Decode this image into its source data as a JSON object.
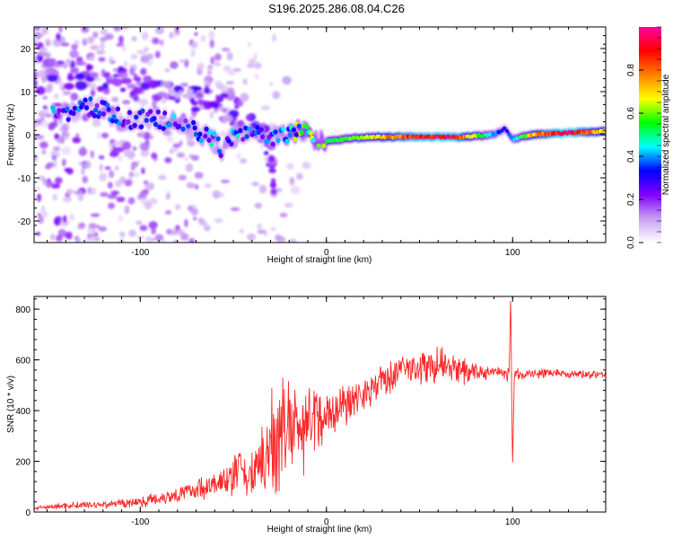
{
  "title": "S196.2025.286.08.04.C26",
  "chart_data": [
    {
      "type": "heatmap",
      "name": "spectrogram",
      "xlabel": "Height of straight line (km)",
      "ylabel": "Frequency (Hz)",
      "xlim": [
        -157,
        150
      ],
      "ylim": [
        -25,
        25
      ],
      "xticks": [
        -100,
        0,
        100
      ],
      "xtick_labels": [
        "-100",
        "0",
        "100"
      ],
      "yticks": [
        -20,
        -10,
        0,
        10,
        20
      ],
      "ytick_labels": [
        "-20",
        "-10",
        "0",
        "10",
        "20"
      ],
      "ridge": [
        {
          "x": -135,
          "y": 5.5,
          "a": 0.3
        },
        {
          "x": -128,
          "y": 6.5,
          "a": 0.28
        },
        {
          "x": -112,
          "y": 4.5,
          "a": 0.3
        },
        {
          "x": -105,
          "y": 3.5,
          "a": 0.26
        },
        {
          "x": -97,
          "y": 3.8,
          "a": 0.28
        },
        {
          "x": -85,
          "y": 3.0,
          "a": 0.32
        },
        {
          "x": -75,
          "y": 2.0,
          "a": 0.3
        },
        {
          "x": -62,
          "y": -1.0,
          "a": 0.36
        },
        {
          "x": -55,
          "y": -4.0,
          "a": 0.3
        },
        {
          "x": -48,
          "y": 1.5,
          "a": 0.35
        },
        {
          "x": -42,
          "y": -0.5,
          "a": 0.3
        },
        {
          "x": -36,
          "y": 0.5,
          "a": 0.28
        },
        {
          "x": -28,
          "y": -1.0,
          "a": 0.3
        },
        {
          "x": -20,
          "y": 0.0,
          "a": 0.45
        },
        {
          "x": -12,
          "y": 1.0,
          "a": 0.55
        },
        {
          "x": -5,
          "y": -1.5,
          "a": 0.5
        },
        {
          "x": 0,
          "y": -1.5,
          "a": 0.52
        },
        {
          "x": 10,
          "y": -1.0,
          "a": 0.55
        },
        {
          "x": 20,
          "y": -0.6,
          "a": 0.65
        },
        {
          "x": 30,
          "y": -0.5,
          "a": 0.72
        },
        {
          "x": 40,
          "y": -0.5,
          "a": 0.82
        },
        {
          "x": 50,
          "y": -0.5,
          "a": 0.9
        },
        {
          "x": 60,
          "y": -0.5,
          "a": 0.92
        },
        {
          "x": 70,
          "y": -0.5,
          "a": 0.9
        },
        {
          "x": 80,
          "y": -0.3,
          "a": 0.6
        },
        {
          "x": 90,
          "y": 0.0,
          "a": 0.4
        },
        {
          "x": 96,
          "y": 1.5,
          "a": 0.3
        },
        {
          "x": 100,
          "y": -1.0,
          "a": 0.4
        },
        {
          "x": 110,
          "y": 0.0,
          "a": 0.7
        },
        {
          "x": 120,
          "y": 0.2,
          "a": 0.85
        },
        {
          "x": 130,
          "y": 0.5,
          "a": 0.95
        },
        {
          "x": 140,
          "y": 0.6,
          "a": 0.8
        },
        {
          "x": 150,
          "y": 0.8,
          "a": 0.7
        }
      ],
      "upper_branch": [
        {
          "x": -160,
          "y": 17
        },
        {
          "x": -140,
          "y": 14
        },
        {
          "x": -125,
          "y": 13.5
        },
        {
          "x": -110,
          "y": 12
        },
        {
          "x": -95,
          "y": 11
        },
        {
          "x": -80,
          "y": 9
        },
        {
          "x": -70,
          "y": 8
        },
        {
          "x": -55,
          "y": 6.5
        },
        {
          "x": -40,
          "y": 3
        },
        {
          "x": -30,
          "y": -3
        },
        {
          "x": -28,
          "y": -12
        }
      ],
      "colorbar": {
        "label": "Normalized spectral amplitude",
        "range": [
          0,
          1
        ],
        "ticks": [
          0.0,
          0.2,
          0.4,
          0.6,
          0.8
        ],
        "tick_labels": [
          "0.0",
          "0.2",
          "0.4",
          "0.6",
          "0.8"
        ],
        "colors": [
          "#ffffff",
          "#c8a0f0",
          "#8000ff",
          "#0000ff",
          "#00ffff",
          "#00ff00",
          "#ffff00",
          "#ff8000",
          "#ff0000",
          "#ff00a0"
        ]
      }
    },
    {
      "type": "line",
      "name": "snr",
      "xlabel": "Height of straight line (km)",
      "ylabel": "SNR (10 * v/v)",
      "xlim": [
        -157,
        150
      ],
      "ylim": [
        0,
        850
      ],
      "xticks": [
        -100,
        0,
        100
      ],
      "xtick_labels": [
        "-100",
        "0",
        "100"
      ],
      "yticks": [
        0,
        200,
        400,
        600,
        800
      ],
      "ytick_labels": [
        "0",
        "200",
        "400",
        "600",
        "800"
      ],
      "line_color": "#ff0000",
      "envelope": {
        "x": [
          -157,
          -140,
          -120,
          -100,
          -80,
          -60,
          -50,
          -40,
          -35,
          -30,
          -25,
          -20,
          -15,
          -10,
          -5,
          0,
          10,
          20,
          30,
          40,
          50,
          60,
          70,
          80,
          90,
          100,
          110,
          120,
          130,
          140,
          150
        ],
        "mid": [
          15,
          25,
          30,
          40,
          70,
          110,
          130,
          150,
          180,
          260,
          320,
          330,
          340,
          350,
          360,
          380,
          430,
          470,
          520,
          560,
          570,
          580,
          560,
          550,
          550,
          540,
          545,
          550,
          545,
          545,
          545
        ],
        "amp": [
          8,
          15,
          20,
          25,
          40,
          60,
          80,
          100,
          180,
          240,
          270,
          250,
          230,
          190,
          160,
          120,
          100,
          90,
          80,
          80,
          90,
          90,
          70,
          40,
          30,
          30,
          25,
          20,
          20,
          20,
          20
        ]
      },
      "features": [
        {
          "x": -47,
          "label_value": 225
        },
        {
          "x": 99,
          "label_value": 860
        },
        {
          "x": 100,
          "label_value": 180
        }
      ]
    }
  ]
}
